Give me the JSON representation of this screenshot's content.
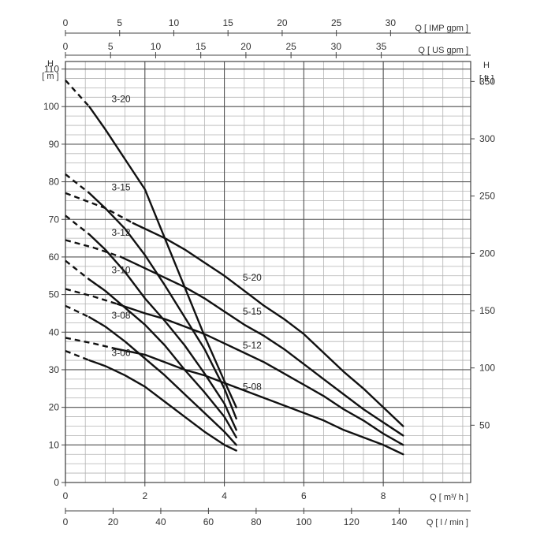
{
  "chart_data": {
    "type": "line",
    "title": "",
    "x_unit_label": "Q [ m³/ h ]",
    "xlim": [
      0,
      10.2
    ],
    "x_ticks": [
      0,
      2,
      4,
      6,
      8
    ],
    "y_unit_label": "H [ m ]",
    "ylim": [
      0,
      112
    ],
    "y_ticks": [
      0,
      10,
      20,
      30,
      40,
      50,
      60,
      70,
      80,
      90,
      100,
      110
    ],
    "grid": true,
    "secondary_axes": {
      "right_feet": {
        "label": "H [ ft ]",
        "ticks": [
          50,
          100,
          150,
          200,
          250,
          300,
          350
        ],
        "factor_to_m": 0.3048
      },
      "top_imp": {
        "label": "Q [ IMP gpm ]",
        "ticks": [
          0,
          5,
          10,
          15,
          20,
          25,
          30
        ],
        "factor_to_m3h": 0.27277
      },
      "top_us": {
        "label": "Q [ US gpm ]",
        "ticks": [
          0,
          5,
          10,
          15,
          20,
          25,
          30,
          35
        ],
        "factor_to_m3h": 0.22712
      },
      "bottom_lmin": {
        "label": "Q [ l / min ]",
        "ticks": [
          0,
          20,
          40,
          60,
          80,
          100,
          120,
          140
        ],
        "factor_to_m3h": 0.06
      }
    },
    "series": [
      {
        "name": "3-20",
        "dashed_until": 0.6,
        "label_at": [
          1.4,
          102
        ],
        "points": [
          [
            0,
            107
          ],
          [
            0.6,
            100
          ],
          [
            1,
            94
          ],
          [
            1.5,
            86
          ],
          [
            2,
            78
          ],
          [
            2.5,
            65
          ],
          [
            3,
            52
          ],
          [
            3.5,
            39
          ],
          [
            4,
            27
          ],
          [
            4.3,
            20
          ]
        ]
      },
      {
        "name": "3-15",
        "dashed_until": 0.6,
        "label_at": [
          1.4,
          78.5
        ],
        "points": [
          [
            0,
            82
          ],
          [
            0.6,
            77
          ],
          [
            1,
            73
          ],
          [
            1.5,
            67.5
          ],
          [
            2,
            60.5
          ],
          [
            2.5,
            52.5
          ],
          [
            3,
            44
          ],
          [
            3.5,
            35.5
          ],
          [
            4,
            25
          ],
          [
            4.3,
            17
          ]
        ]
      },
      {
        "name": "3-12",
        "dashed_until": 0.6,
        "label_at": [
          1.4,
          66.5
        ],
        "points": [
          [
            0,
            71
          ],
          [
            0.6,
            66
          ],
          [
            1,
            62
          ],
          [
            1.5,
            56
          ],
          [
            2,
            49
          ],
          [
            2.5,
            43
          ],
          [
            3,
            36.5
          ],
          [
            3.5,
            29
          ],
          [
            4,
            21
          ],
          [
            4.3,
            14
          ]
        ]
      },
      {
        "name": "3-10",
        "dashed_until": 0.6,
        "label_at": [
          1.4,
          56.5
        ],
        "points": [
          [
            0,
            59
          ],
          [
            0.6,
            54
          ],
          [
            1,
            51
          ],
          [
            1.5,
            46.5
          ],
          [
            2,
            42
          ],
          [
            2.5,
            36.5
          ],
          [
            3,
            30
          ],
          [
            3.5,
            24
          ],
          [
            4,
            17.5
          ],
          [
            4.3,
            12
          ]
        ]
      },
      {
        "name": "3-08",
        "dashed_until": 0.6,
        "label_at": [
          1.4,
          44.5
        ],
        "points": [
          [
            0,
            47
          ],
          [
            0.6,
            44
          ],
          [
            1,
            41.5
          ],
          [
            1.5,
            37.5
          ],
          [
            2,
            33
          ],
          [
            2.5,
            28.5
          ],
          [
            3,
            23.5
          ],
          [
            3.5,
            18.5
          ],
          [
            4,
            13.5
          ],
          [
            4.3,
            10
          ]
        ]
      },
      {
        "name": "3-06",
        "dashed_until": 0.6,
        "label_at": [
          1.4,
          34.5
        ],
        "points": [
          [
            0,
            35
          ],
          [
            0.6,
            32.5
          ],
          [
            1,
            31
          ],
          [
            1.5,
            28.5
          ],
          [
            2,
            25.5
          ],
          [
            2.5,
            21.5
          ],
          [
            3,
            17.5
          ],
          [
            3.5,
            13.5
          ],
          [
            4,
            10
          ],
          [
            4.3,
            8.5
          ]
        ]
      },
      {
        "name": "5-20",
        "dashed_until": 1.7,
        "label_at": [
          4.7,
          54.5
        ],
        "points": [
          [
            0,
            77
          ],
          [
            1,
            73
          ],
          [
            1.7,
            69
          ],
          [
            2.5,
            65
          ],
          [
            3,
            62
          ],
          [
            3.5,
            58.5
          ],
          [
            4,
            55
          ],
          [
            4.5,
            51
          ],
          [
            5,
            47
          ],
          [
            5.5,
            43.5
          ],
          [
            6,
            39.5
          ],
          [
            6.5,
            34.5
          ],
          [
            7,
            29.5
          ],
          [
            7.5,
            25
          ],
          [
            8,
            20
          ],
          [
            8.5,
            15
          ]
        ]
      },
      {
        "name": "5-15",
        "dashed_until": 1.4,
        "label_at": [
          4.7,
          45.5
        ],
        "points": [
          [
            0,
            64.5
          ],
          [
            0.7,
            62.5
          ],
          [
            1.4,
            60
          ],
          [
            2,
            57
          ],
          [
            2.5,
            54.5
          ],
          [
            3,
            52
          ],
          [
            3.5,
            49
          ],
          [
            4,
            45.5
          ],
          [
            4.5,
            42
          ],
          [
            5,
            39
          ],
          [
            5.5,
            35.5
          ],
          [
            6,
            31.5
          ],
          [
            6.5,
            27.5
          ],
          [
            7,
            23.5
          ],
          [
            7.5,
            19.5
          ],
          [
            8,
            16
          ],
          [
            8.5,
            12.5
          ]
        ]
      },
      {
        "name": "5-12",
        "dashed_until": 1.3,
        "label_at": [
          4.7,
          36.5
        ],
        "points": [
          [
            0,
            51.5
          ],
          [
            0.7,
            49.5
          ],
          [
            1.3,
            47.5
          ],
          [
            2,
            45
          ],
          [
            2.5,
            43.5
          ],
          [
            3,
            41.5
          ],
          [
            3.5,
            39.5
          ],
          [
            4,
            37
          ],
          [
            4.5,
            34.5
          ],
          [
            5,
            32
          ],
          [
            5.5,
            29
          ],
          [
            6,
            26
          ],
          [
            6.5,
            23
          ],
          [
            7,
            19.5
          ],
          [
            7.5,
            16.5
          ],
          [
            8,
            13
          ],
          [
            8.5,
            10
          ]
        ]
      },
      {
        "name": "5-08",
        "dashed_until": 1.3,
        "label_at": [
          4.7,
          25.5
        ],
        "points": [
          [
            0,
            38.5
          ],
          [
            0.7,
            37
          ],
          [
            1.3,
            35.5
          ],
          [
            2,
            34
          ],
          [
            2.5,
            32
          ],
          [
            3,
            30
          ],
          [
            3.5,
            28.5
          ],
          [
            4,
            26.5
          ],
          [
            4.5,
            24.5
          ],
          [
            5,
            22.5
          ],
          [
            5.5,
            20.5
          ],
          [
            6,
            18.5
          ],
          [
            6.5,
            16.5
          ],
          [
            7,
            14
          ],
          [
            7.5,
            12
          ],
          [
            8,
            10
          ],
          [
            8.5,
            7.5
          ]
        ]
      }
    ]
  }
}
